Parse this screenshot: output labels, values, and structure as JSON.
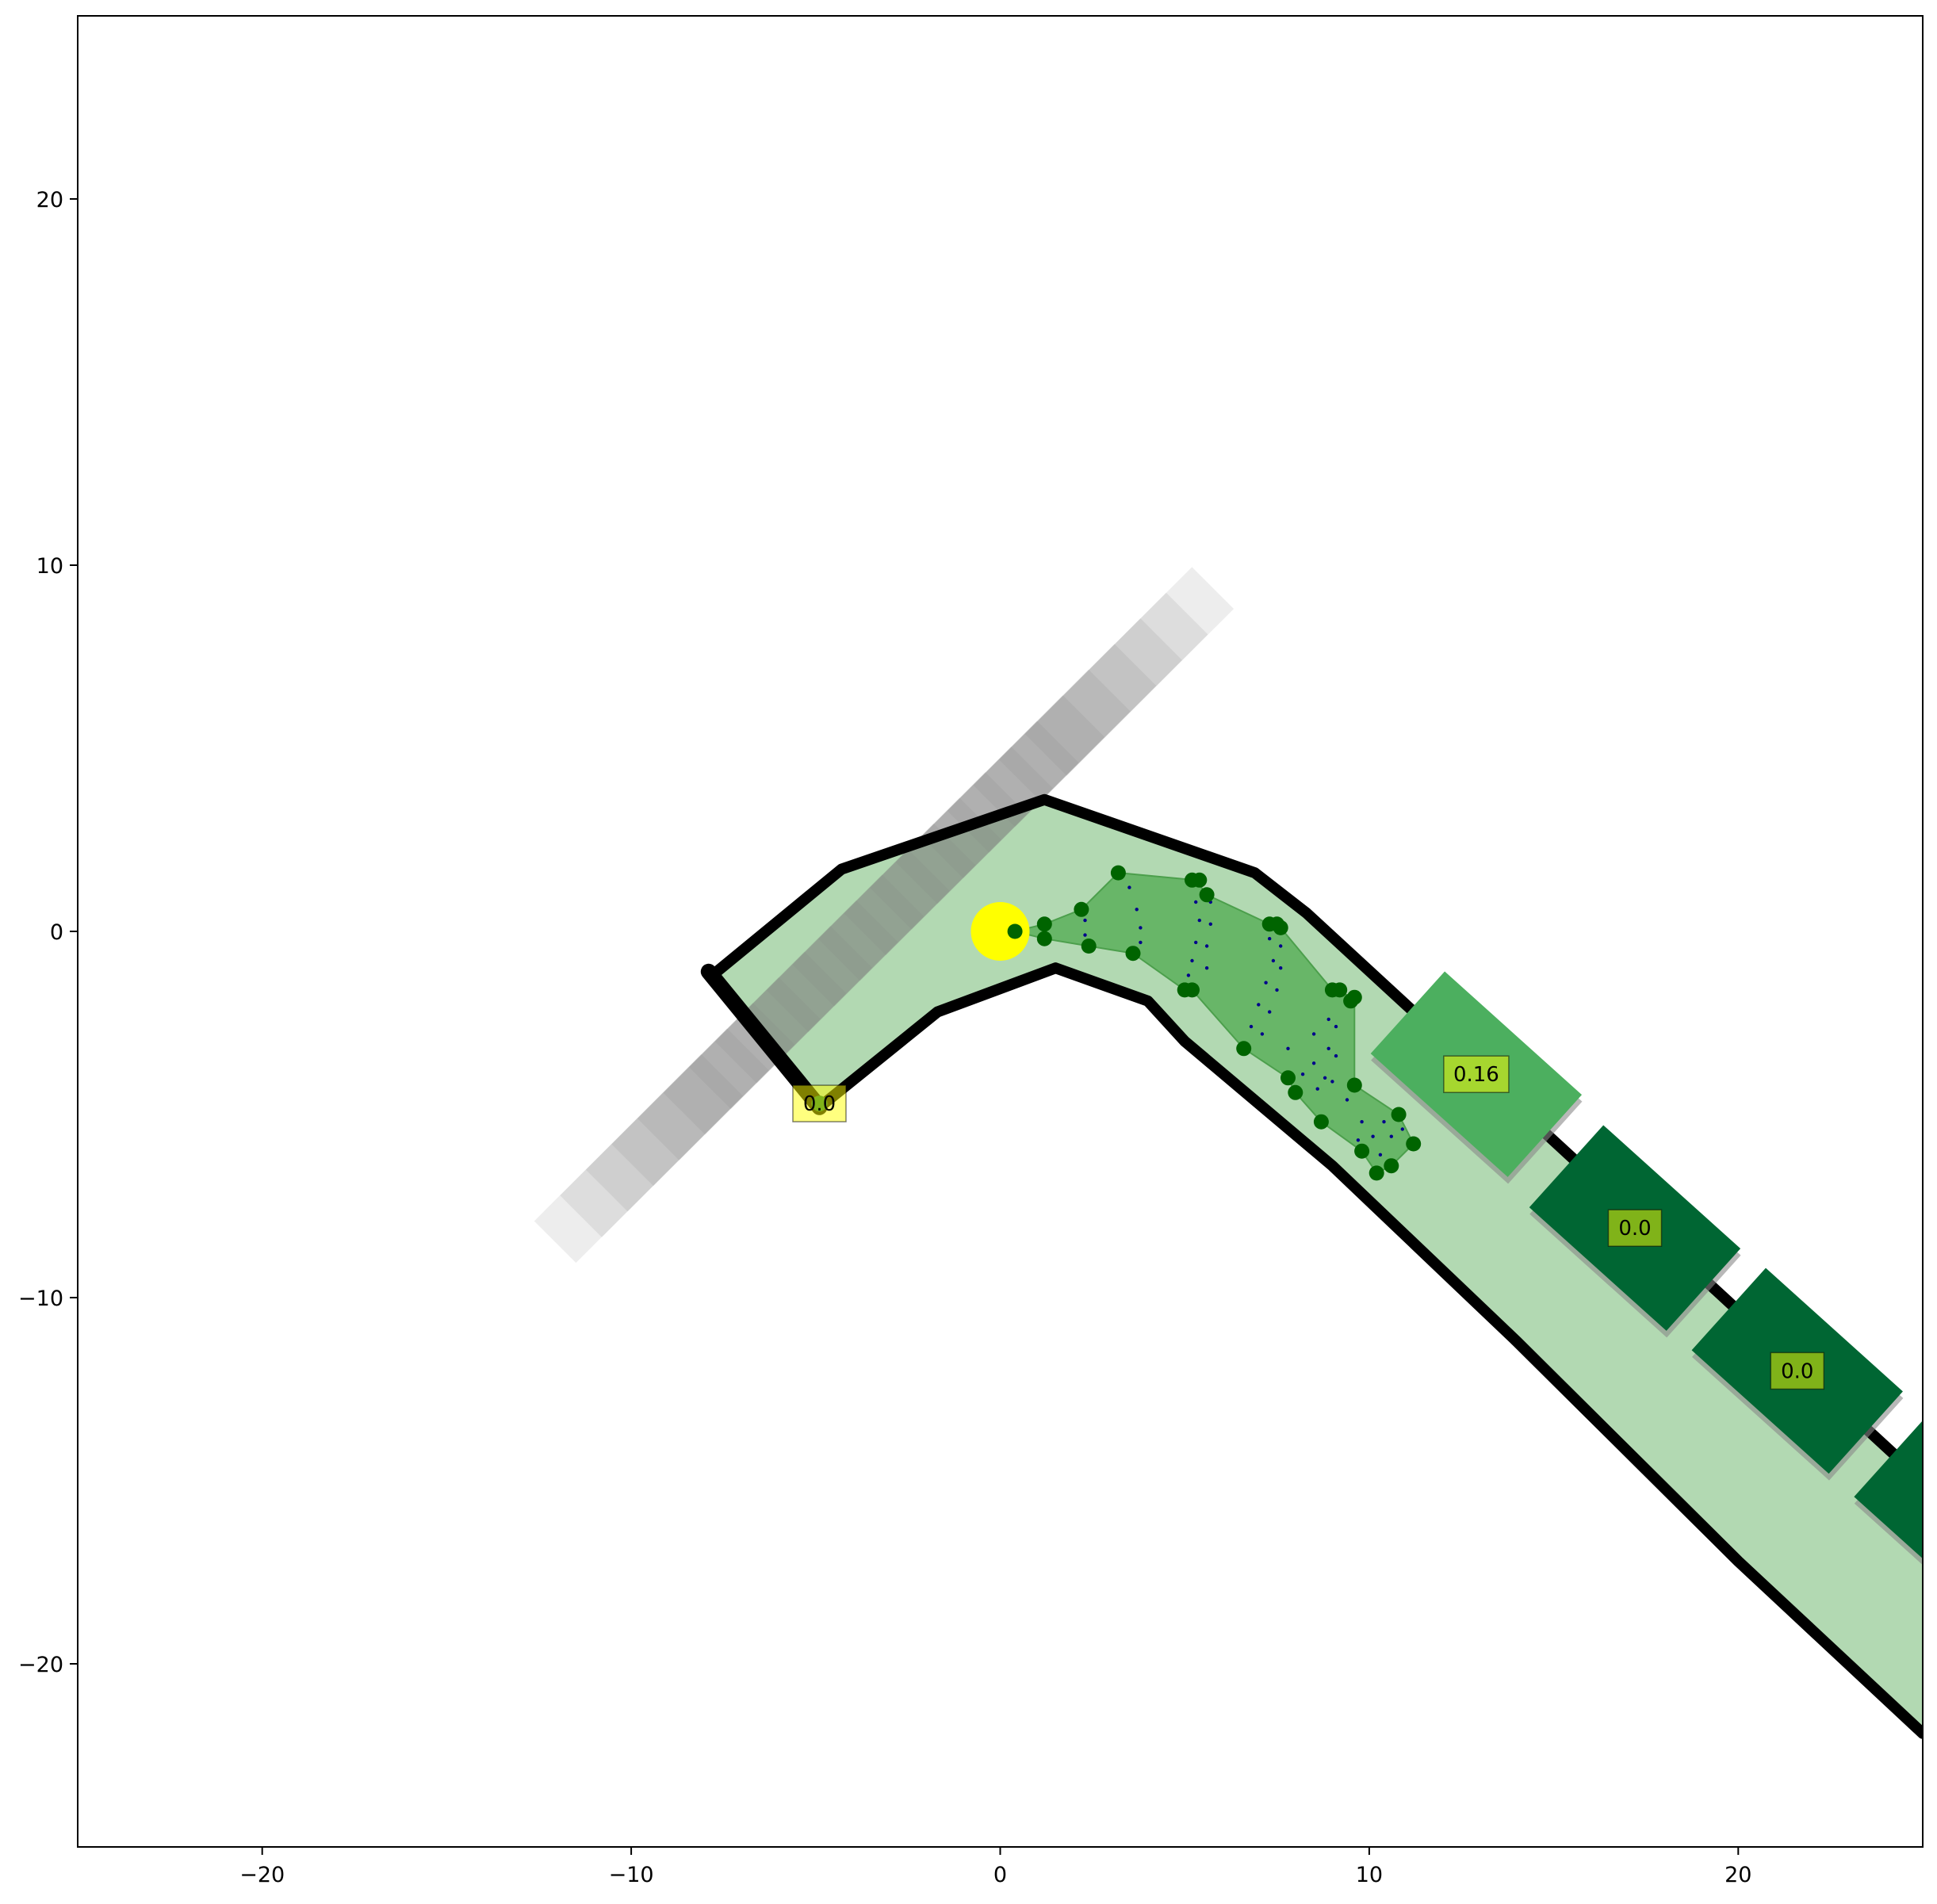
{
  "chart_data": {
    "type": "scatter",
    "title": "",
    "xlabel": "",
    "ylabel": "",
    "xlim": [
      -25,
      25
    ],
    "ylim": [
      -25,
      25
    ],
    "grid": false,
    "x_ticks": [
      -20,
      -10,
      0,
      10,
      20
    ],
    "x_tick_labels": [
      "−20",
      "−10",
      "0",
      "10",
      "20"
    ],
    "y_ticks": [
      20,
      10,
      0,
      -10,
      -20
    ],
    "y_tick_labels": [
      "20",
      "10",
      "0",
      "−10",
      "−20"
    ],
    "lane_area": [
      [
        -7.8,
        -1.2
      ],
      [
        -4.3,
        1.7
      ],
      [
        1.2,
        3.6
      ],
      [
        6.9,
        1.6
      ],
      [
        8.3,
        0.5
      ],
      [
        25,
        -15.0
      ],
      [
        25,
        -21.9
      ],
      [
        20,
        -17.2
      ],
      [
        14.0,
        -11.2
      ],
      [
        9.0,
        -6.4
      ],
      [
        5.0,
        -3.0
      ],
      [
        4.0,
        -1.9
      ],
      [
        1.5,
        -1.0
      ],
      [
        -1.7,
        -2.2
      ],
      [
        -4.9,
        -4.8
      ]
    ],
    "lane_boundaries": [
      [
        [
          -7.8,
          -1.2
        ],
        [
          -4.3,
          1.7
        ],
        [
          1.2,
          3.6
        ],
        [
          6.9,
          1.6
        ],
        [
          8.3,
          0.5
        ],
        [
          25,
          -15.0
        ]
      ],
      [
        [
          -4.9,
          -4.8
        ],
        [
          -1.7,
          -2.2
        ],
        [
          1.5,
          -1.0
        ],
        [
          4.0,
          -1.9
        ],
        [
          5.0,
          -3.0
        ],
        [
          9.0,
          -6.4
        ],
        [
          14.0,
          -11.2
        ],
        [
          20,
          -17.2
        ],
        [
          25,
          -21.9
        ]
      ],
      [
        [
          -7.9,
          -1.1
        ],
        [
          -4.9,
          -4.8
        ]
      ]
    ],
    "ego_position": [
      0,
      0
    ],
    "reachable_set": {
      "hull": [
        [
          0.4,
          0.0
        ],
        [
          1.2,
          0.2
        ],
        [
          2.2,
          0.6
        ],
        [
          3.2,
          1.6
        ],
        [
          5.3,
          1.4
        ],
        [
          5.6,
          1.0
        ],
        [
          7.3,
          0.2
        ],
        [
          7.6,
          0.1
        ],
        [
          9.0,
          -1.6
        ],
        [
          9.6,
          -1.8
        ],
        [
          9.6,
          -4.2
        ],
        [
          10.8,
          -5.0
        ],
        [
          11.2,
          -5.8
        ],
        [
          10.6,
          -6.4
        ],
        [
          10.2,
          -6.6
        ],
        [
          9.8,
          -6.0
        ],
        [
          8.7,
          -5.2
        ],
        [
          8.0,
          -4.4
        ],
        [
          7.8,
          -4.0
        ],
        [
          6.6,
          -3.2
        ],
        [
          5.2,
          -1.6
        ],
        [
          5.0,
          -1.6
        ],
        [
          3.6,
          -0.6
        ],
        [
          2.4,
          -0.4
        ],
        [
          1.2,
          -0.2
        ]
      ],
      "points": [
        [
          0.4,
          0.0
        ],
        [
          1.2,
          0.2
        ],
        [
          1.2,
          -0.2
        ],
        [
          2.2,
          0.6
        ],
        [
          2.4,
          -0.4
        ],
        [
          3.2,
          1.6
        ],
        [
          3.6,
          -0.6
        ],
        [
          5.2,
          1.4
        ],
        [
          5.4,
          1.4
        ],
        [
          5.6,
          1.0
        ],
        [
          5.0,
          -1.6
        ],
        [
          5.2,
          -1.6
        ],
        [
          7.3,
          0.2
        ],
        [
          7.5,
          0.2
        ],
        [
          7.6,
          0.1
        ],
        [
          6.6,
          -3.2
        ],
        [
          7.8,
          -4.0
        ],
        [
          8.0,
          -4.4
        ],
        [
          9.0,
          -1.6
        ],
        [
          9.2,
          -1.6
        ],
        [
          9.5,
          -1.9
        ],
        [
          9.6,
          -1.8
        ],
        [
          9.6,
          -4.2
        ],
        [
          8.7,
          -5.2
        ],
        [
          10.8,
          -5.0
        ],
        [
          11.2,
          -5.8
        ],
        [
          9.8,
          -6.0
        ],
        [
          10.6,
          -6.4
        ],
        [
          10.2,
          -6.6
        ]
      ],
      "sample_points": [
        [
          0.0,
          0.0
        ],
        [
          2.3,
          0.3
        ],
        [
          2.3,
          -0.1
        ],
        [
          3.5,
          1.2
        ],
        [
          3.7,
          0.6
        ],
        [
          3.8,
          0.1
        ],
        [
          3.8,
          -0.3
        ],
        [
          5.3,
          0.8
        ],
        [
          5.4,
          0.3
        ],
        [
          5.3,
          -0.3
        ],
        [
          5.2,
          -0.8
        ],
        [
          5.1,
          -1.2
        ],
        [
          5.7,
          0.8
        ],
        [
          5.7,
          0.2
        ],
        [
          5.6,
          -0.4
        ],
        [
          5.6,
          -1.0
        ],
        [
          7.3,
          -0.2
        ],
        [
          7.4,
          -0.8
        ],
        [
          7.2,
          -1.4
        ],
        [
          7.0,
          -2.0
        ],
        [
          6.8,
          -2.6
        ],
        [
          7.6,
          -0.4
        ],
        [
          7.6,
          -1.0
        ],
        [
          7.5,
          -1.6
        ],
        [
          7.3,
          -2.2
        ],
        [
          7.1,
          -2.8
        ],
        [
          7.8,
          -3.2
        ],
        [
          8.2,
          -3.9
        ],
        [
          8.5,
          -2.8
        ],
        [
          8.5,
          -3.6
        ],
        [
          8.6,
          -4.3
        ],
        [
          8.9,
          -2.4
        ],
        [
          8.9,
          -3.2
        ],
        [
          8.8,
          -4.0
        ],
        [
          9.1,
          -2.6
        ],
        [
          9.1,
          -3.4
        ],
        [
          9.0,
          -4.1
        ],
        [
          9.4,
          -4.6
        ],
        [
          9.8,
          -5.2
        ],
        [
          10.1,
          -5.6
        ],
        [
          10.4,
          -5.2
        ],
        [
          10.6,
          -5.6
        ],
        [
          10.9,
          -5.4
        ],
        [
          10.3,
          -6.1
        ],
        [
          9.7,
          -5.7
        ]
      ]
    },
    "obstacle_history": [
      [
        -9.8,
        -6.2
      ],
      [
        -9.1,
        -5.5
      ],
      [
        -8.4,
        -4.8
      ],
      [
        -7.7,
        -4.1
      ],
      [
        -7.0,
        -3.4
      ],
      [
        -6.3,
        -2.7
      ],
      [
        -5.6,
        -2.0
      ],
      [
        -4.9,
        -1.3
      ],
      [
        -4.2,
        -0.6
      ],
      [
        -3.5,
        0.1
      ],
      [
        -2.8,
        0.8
      ],
      [
        -2.1,
        1.5
      ],
      [
        -1.4,
        2.2
      ],
      [
        -0.7,
        2.9
      ],
      [
        0.0,
        3.6
      ],
      [
        0.7,
        4.3
      ],
      [
        1.4,
        5.0
      ],
      [
        2.1,
        5.7
      ],
      [
        2.8,
        6.4
      ],
      [
        3.5,
        7.1
      ]
    ],
    "vehicles": [
      {
        "center": [
          -4.9,
          -4.7
        ],
        "label": "0.0",
        "color": "#006633",
        "heading_deg": -45,
        "rect": false
      },
      {
        "center": [
          12.9,
          -3.9
        ],
        "label": "0.16",
        "color": "#4caf5f",
        "heading_deg": -42,
        "rect": true
      },
      {
        "center": [
          17.2,
          -8.1
        ],
        "label": "0.0",
        "color": "#006633",
        "heading_deg": -42,
        "rect": true
      },
      {
        "center": [
          21.6,
          -12.0
        ],
        "label": "0.0",
        "color": "#006633",
        "heading_deg": -42,
        "rect": true
      },
      {
        "center": [
          26.0,
          -16.0
        ],
        "label": "",
        "color": "#006633",
        "heading_deg": -42,
        "rect": true
      }
    ],
    "colors": {
      "lane": "#b2d9b2",
      "boundary": "#000000",
      "ego": "#ffff00",
      "reachable_fill": "#5aaf5a",
      "reachable_point": "#006400",
      "sample_point": "#00008b",
      "label_box": "#ffff00"
    }
  }
}
